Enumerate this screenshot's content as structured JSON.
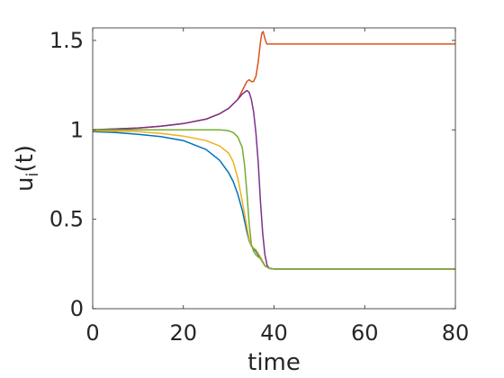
{
  "chart_data": {
    "type": "line",
    "title": "",
    "xlabel": "time",
    "ylabel_main": "u",
    "ylabel_sub": "i",
    "ylabel_suffix": "(t)",
    "xlim": [
      0,
      80
    ],
    "ylim": [
      0,
      1.57
    ],
    "xticks": [
      0,
      20,
      40,
      60,
      80
    ],
    "xtick_labels": [
      "0",
      "20",
      "40",
      "60",
      "80"
    ],
    "yticks": [
      0,
      0.5,
      1,
      1.5
    ],
    "ytick_labels": [
      "0",
      "0.5",
      "1",
      "1.5"
    ],
    "grid": false,
    "legend": "none",
    "series": [
      {
        "color": "#0072BD",
        "points": [
          [
            0,
            0.99
          ],
          [
            5,
            0.985
          ],
          [
            10,
            0.975
          ],
          [
            15,
            0.962
          ],
          [
            20,
            0.94
          ],
          [
            25,
            0.89
          ],
          [
            28,
            0.83
          ],
          [
            30,
            0.76
          ],
          [
            31,
            0.71
          ],
          [
            32,
            0.64
          ],
          [
            33,
            0.55
          ],
          [
            34,
            0.43
          ],
          [
            34.5,
            0.38
          ],
          [
            35,
            0.35
          ],
          [
            35.5,
            0.335
          ],
          [
            36,
            0.32
          ],
          [
            37,
            0.28
          ],
          [
            38,
            0.24
          ],
          [
            39,
            0.225
          ],
          [
            40,
            0.222
          ],
          [
            50,
            0.222
          ],
          [
            60,
            0.222
          ],
          [
            70,
            0.222
          ],
          [
            80,
            0.222
          ]
        ]
      },
      {
        "color": "#D95319",
        "points": [
          [
            0,
            1.0
          ],
          [
            5,
            1.005
          ],
          [
            10,
            1.01
          ],
          [
            15,
            1.02
          ],
          [
            20,
            1.035
          ],
          [
            25,
            1.06
          ],
          [
            28,
            1.09
          ],
          [
            30,
            1.12
          ],
          [
            32,
            1.17
          ],
          [
            33,
            1.22
          ],
          [
            34,
            1.27
          ],
          [
            34.5,
            1.28
          ],
          [
            35,
            1.27
          ],
          [
            35.5,
            1.27
          ],
          [
            36,
            1.3
          ],
          [
            36.5,
            1.38
          ],
          [
            37,
            1.49
          ],
          [
            37.3,
            1.54
          ],
          [
            37.6,
            1.55
          ],
          [
            38,
            1.51
          ],
          [
            38.4,
            1.48
          ],
          [
            39,
            1.48
          ],
          [
            40,
            1.48
          ],
          [
            50,
            1.48
          ],
          [
            60,
            1.48
          ],
          [
            70,
            1.48
          ],
          [
            80,
            1.48
          ]
        ]
      },
      {
        "color": "#EDB120",
        "points": [
          [
            0,
            0.995
          ],
          [
            5,
            0.993
          ],
          [
            10,
            0.99
          ],
          [
            15,
            0.98
          ],
          [
            20,
            0.965
          ],
          [
            25,
            0.94
          ],
          [
            28,
            0.91
          ],
          [
            30,
            0.87
          ],
          [
            31,
            0.82
          ],
          [
            32,
            0.73
          ],
          [
            33,
            0.6
          ],
          [
            34,
            0.46
          ],
          [
            34.5,
            0.39
          ],
          [
            35,
            0.35
          ],
          [
            35.5,
            0.34
          ],
          [
            36,
            0.33
          ],
          [
            37,
            0.29
          ],
          [
            38,
            0.24
          ],
          [
            39,
            0.225
          ],
          [
            40,
            0.222
          ],
          [
            50,
            0.222
          ],
          [
            60,
            0.222
          ],
          [
            70,
            0.222
          ],
          [
            80,
            0.222
          ]
        ]
      },
      {
        "color": "#7E2F8E",
        "points": [
          [
            0,
            1.0
          ],
          [
            5,
            1.005
          ],
          [
            10,
            1.01
          ],
          [
            15,
            1.02
          ],
          [
            20,
            1.035
          ],
          [
            25,
            1.06
          ],
          [
            28,
            1.09
          ],
          [
            30,
            1.12
          ],
          [
            32,
            1.17
          ],
          [
            33,
            1.2
          ],
          [
            34,
            1.22
          ],
          [
            34.5,
            1.21
          ],
          [
            35,
            1.17
          ],
          [
            35.5,
            1.1
          ],
          [
            36,
            0.98
          ],
          [
            36.5,
            0.82
          ],
          [
            37,
            0.6
          ],
          [
            37.5,
            0.42
          ],
          [
            38,
            0.3
          ],
          [
            38.5,
            0.24
          ],
          [
            39,
            0.225
          ],
          [
            40,
            0.222
          ],
          [
            50,
            0.222
          ],
          [
            60,
            0.222
          ],
          [
            70,
            0.222
          ],
          [
            80,
            0.222
          ]
        ]
      },
      {
        "color": "#77AC30",
        "points": [
          [
            0,
            1.0
          ],
          [
            10,
            1.0
          ],
          [
            20,
            1.0
          ],
          [
            25,
            1.0
          ],
          [
            28,
            1.0
          ],
          [
            30,
            0.995
          ],
          [
            31,
            0.985
          ],
          [
            32,
            0.96
          ],
          [
            33,
            0.9
          ],
          [
            33.5,
            0.8
          ],
          [
            34,
            0.65
          ],
          [
            34.5,
            0.48
          ],
          [
            35,
            0.36
          ],
          [
            35.5,
            0.32
          ],
          [
            36,
            0.3
          ],
          [
            37,
            0.28
          ],
          [
            38,
            0.24
          ],
          [
            39,
            0.225
          ],
          [
            40,
            0.222
          ],
          [
            50,
            0.222
          ],
          [
            60,
            0.222
          ],
          [
            70,
            0.222
          ],
          [
            80,
            0.222
          ]
        ]
      }
    ]
  }
}
